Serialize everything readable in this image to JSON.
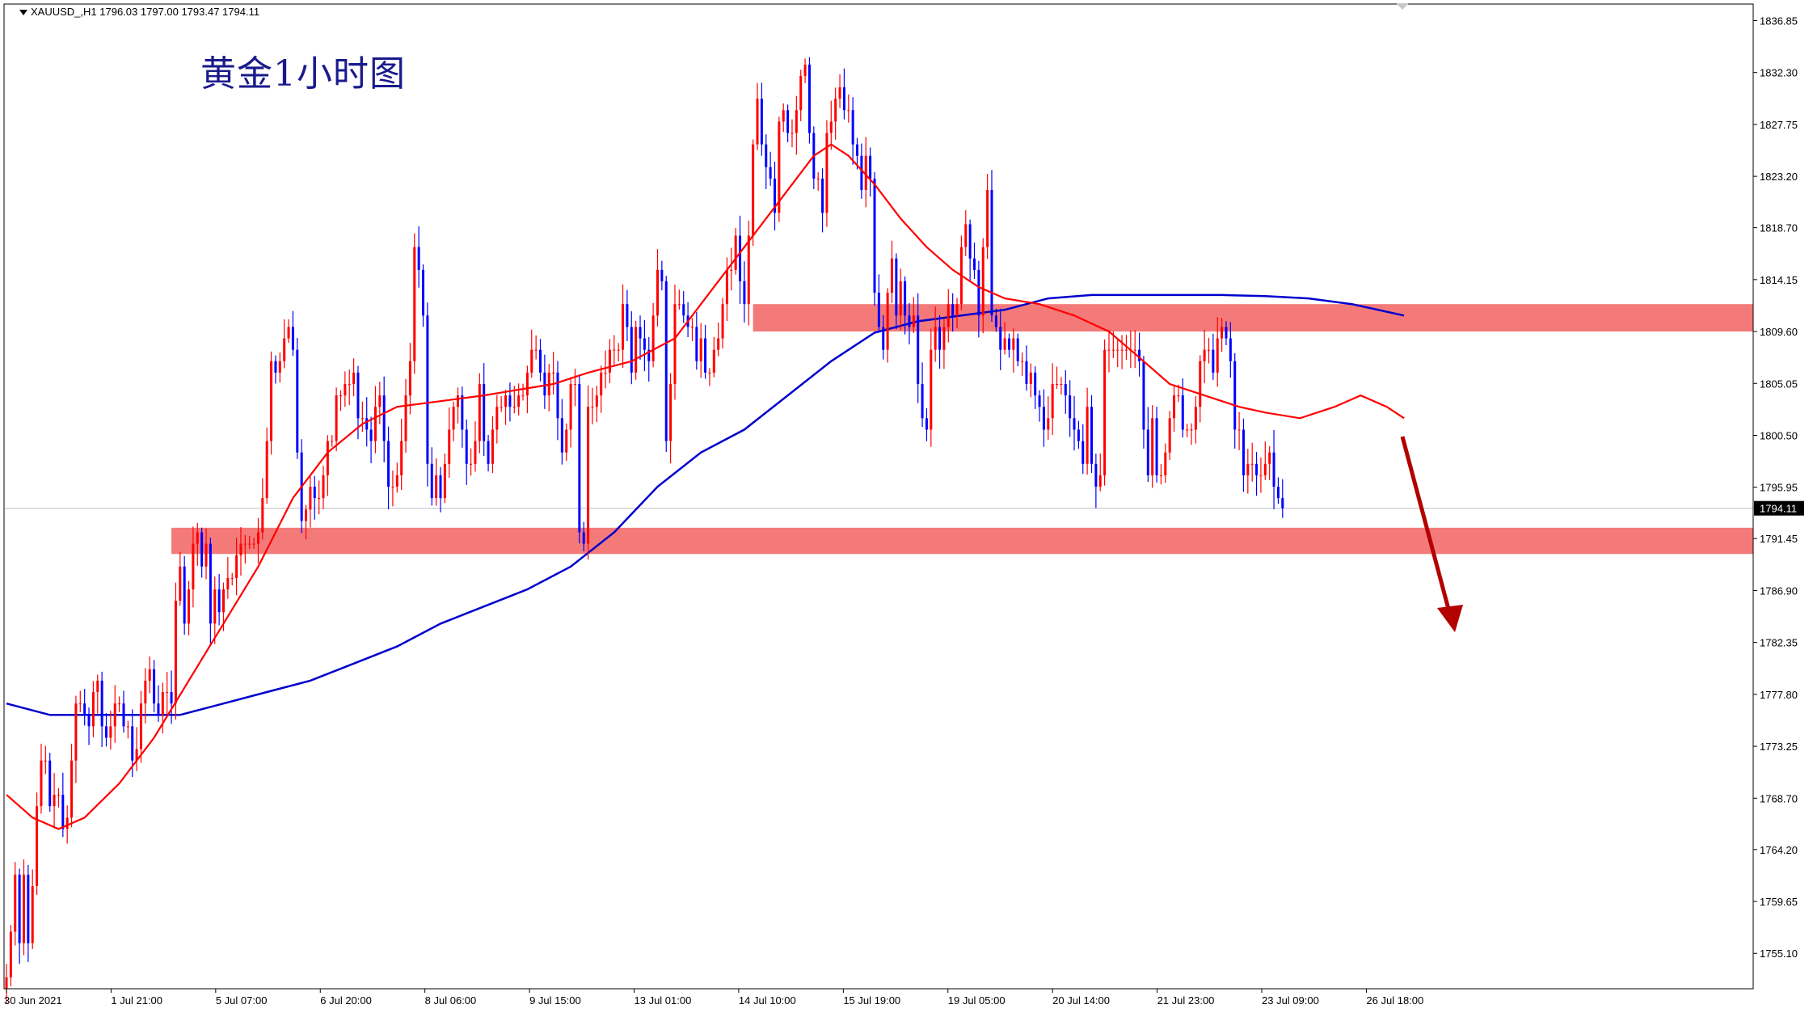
{
  "header": {
    "symbol_line": "XAUUSD_,H1  1796.03 1797.00 1793.47 1794.11"
  },
  "annotation_title": "黄金1小时图",
  "colors": {
    "bull": "#ff0000",
    "bear": "#0000ff",
    "ma_fast": "#ff0000",
    "ma_slow": "#0000cc",
    "zone": "#f47a7a",
    "arrow": "#b30000",
    "price_line": "#c0c0c0",
    "price_label_bg": "#000000",
    "price_label_fg": "#ffffff"
  },
  "chart_data": {
    "type": "candlestick",
    "symbol": "XAUUSD_",
    "timeframe": "H1",
    "ohlc_current": {
      "open": 1796.03,
      "high": 1797.0,
      "low": 1793.47,
      "close": 1794.11
    },
    "current_price_label": "1794.11",
    "ylim": [
      1752.0,
      1838.3
    ],
    "y_ticks": [
      "1836.85",
      "1832.30",
      "1827.75",
      "1823.20",
      "1818.70",
      "1814.15",
      "1809.60",
      "1805.05",
      "1800.50",
      "1795.95",
      "1791.45",
      "1786.90",
      "1782.35",
      "1777.80",
      "1773.25",
      "1768.70",
      "1764.20",
      "1759.65",
      "1755.10"
    ],
    "x_ticks": [
      "30 Jun 2021",
      "1 Jul 21:00",
      "5 Jul 07:00",
      "6 Jul 20:00",
      "8 Jul 06:00",
      "9 Jul 15:00",
      "13 Jul 01:00",
      "14 Jul 10:00",
      "15 Jul 19:00",
      "19 Jul 05:00",
      "20 Jul 14:00",
      "21 Jul 23:00",
      "23 Jul 09:00",
      "26 Jul 18:00"
    ],
    "ma_fast_keypoints": [
      [
        0,
        1769
      ],
      [
        6,
        1767
      ],
      [
        12,
        1766
      ],
      [
        18,
        1767
      ],
      [
        26,
        1770
      ],
      [
        34,
        1774
      ],
      [
        42,
        1779
      ],
      [
        50,
        1784
      ],
      [
        58,
        1789
      ],
      [
        66,
        1795
      ],
      [
        74,
        1799
      ],
      [
        82,
        1801.5
      ],
      [
        90,
        1803
      ],
      [
        100,
        1803.5
      ],
      [
        110,
        1804
      ],
      [
        118,
        1804.5
      ],
      [
        126,
        1805
      ],
      [
        134,
        1806
      ],
      [
        144,
        1807
      ],
      [
        154,
        1809
      ],
      [
        162,
        1813
      ],
      [
        170,
        1817
      ],
      [
        176,
        1820
      ],
      [
        180,
        1822
      ],
      [
        186,
        1825
      ],
      [
        190,
        1826
      ],
      [
        194,
        1825
      ],
      [
        200,
        1822.5
      ],
      [
        206,
        1819.5
      ],
      [
        212,
        1817
      ],
      [
        218,
        1815
      ],
      [
        224,
        1813.5
      ],
      [
        230,
        1812.5
      ],
      [
        238,
        1812
      ],
      [
        246,
        1811
      ],
      [
        254,
        1809.6
      ],
      [
        262,
        1807
      ],
      [
        268,
        1805
      ],
      [
        276,
        1804
      ],
      [
        284,
        1803
      ],
      [
        290,
        1802.5
      ],
      [
        298,
        1802
      ],
      [
        306,
        1803
      ],
      [
        312,
        1804
      ],
      [
        318,
        1803
      ],
      [
        322,
        1802
      ]
    ],
    "ma_slow_keypoints": [
      [
        0,
        1777
      ],
      [
        10,
        1776
      ],
      [
        20,
        1776
      ],
      [
        30,
        1776
      ],
      [
        40,
        1776
      ],
      [
        50,
        1777
      ],
      [
        60,
        1778
      ],
      [
        70,
        1779
      ],
      [
        80,
        1780.5
      ],
      [
        90,
        1782
      ],
      [
        100,
        1784
      ],
      [
        110,
        1785.5
      ],
      [
        120,
        1787
      ],
      [
        130,
        1789
      ],
      [
        140,
        1792
      ],
      [
        150,
        1796
      ],
      [
        160,
        1799
      ],
      [
        170,
        1801
      ],
      [
        180,
        1804
      ],
      [
        190,
        1807
      ],
      [
        200,
        1809.5
      ],
      [
        210,
        1810.5
      ],
      [
        220,
        1811
      ],
      [
        230,
        1811.5
      ],
      [
        240,
        1812.5
      ],
      [
        250,
        1812.8
      ],
      [
        260,
        1812.8
      ],
      [
        270,
        1812.8
      ],
      [
        280,
        1812.8
      ],
      [
        290,
        1812.7
      ],
      [
        300,
        1812.5
      ],
      [
        310,
        1812
      ],
      [
        322,
        1811
      ]
    ],
    "bars": [
      [
        1753,
        1757,
        1762,
        1756,
        1762,
        1756,
        1761,
        1768,
        1772,
        1772,
        1768,
        1769,
        1769,
        1766,
        1767,
        1772,
        1777,
        1777,
        1776,
        1775,
        1778,
        1779,
        1775,
        1774,
        1775,
        1777,
        1777,
        1775,
        1775,
        1772,
        1773,
        1777,
        1779,
        1780,
        1777,
        1776,
        1778,
        1778,
        1777,
        1786,
        1789,
        1784,
        1787,
        1791,
        1792,
        1789,
        1791,
        1784,
        1787,
        1785,
        1787,
        1788,
        1788,
        1790,
        1791,
        1791,
        1791,
        1791,
        1792,
        1795,
        1800,
        1807,
        1806,
        1807,
        1809,
        1810,
        1808,
        1799,
        1793,
        1794,
        1796,
        1795,
        1795,
        1797,
        1800,
        1800,
        1804,
        1804,
        1805,
        1805,
        1806,
        1802,
        1802,
        1801,
        1800,
        1803,
        1804,
        1800,
        1796,
        1796,
        1797,
        1800,
        1804,
        1807,
        1817,
        1815,
        1811,
        1798,
        1795,
        1797,
        1795,
        1798,
        1801,
        1803,
        1804,
        1801,
        1798,
        1798,
        1800,
        1805,
        1800,
        1798,
        1801,
        1803,
        1803,
        1804,
        1803,
        1803,
        1804,
        1804,
        1806,
        1808,
        1808,
        1806,
        1804,
        1806,
        1806,
        1802,
        1799,
        1801,
        1805,
        1805,
        1792,
        1791,
        1803,
        1803,
        1804,
        1806,
        1806,
        1808,
        1808,
        1808,
        1812,
        1810,
        1806,
        1810,
        1809,
        1808,
        1807,
        1811,
        1815,
        1814,
        1800,
        1805,
        1812,
        1812,
        1811,
        1810,
        1810,
        1807,
        1809,
        1806,
        1806,
        1808,
        1809,
        1812,
        1815,
        1815,
        1818,
        1814,
        1812,
        1818,
        1826,
        1830,
        1826,
        1824,
        1823,
        1820,
        1828,
        1829,
        1827,
        1827,
        1829,
        1832,
        1833,
        1827,
        1823,
        1823,
        1820,
        1827,
        1828,
        1830,
        1831,
        1829,
        1829,
        1826,
        1825,
        1822,
        1825,
        1823,
        1813,
        1810,
        1808,
        1813,
        1816,
        1811,
        1814,
        1811,
        1810,
        1811,
        1805,
        1802,
        1801,
        1808,
        1810,
        1808,
        1810,
        1812,
        1811,
        1812,
        1817,
        1819,
        1816,
        1815,
        1811,
        1817,
        1822,
        1811,
        1810,
        1808,
        1809,
        1808,
        1809,
        1807,
        1807,
        1805,
        1806,
        1804,
        1803,
        1801,
        1802,
        1805,
        1805,
        1805,
        1804,
        1802,
        1801,
        1800,
        1798,
        1803,
        1798,
        1796,
        1797,
        1808,
        1808,
        1808,
        1808,
        1808,
        1808,
        1808,
        1808,
        1807,
        1801,
        1797,
        1802,
        1797,
        1797,
        1799,
        1802,
        1804,
        1804,
        1801,
        1801,
        1801,
        1803,
        1807,
        1808,
        1808,
        1806,
        1809,
        1810,
        1809,
        1807,
        1801,
        1801,
        1797,
        1798,
        1798,
        1797,
        1797,
        1798,
        1799,
        1796,
        1795,
        1794.11
      ]
    ]
  }
}
